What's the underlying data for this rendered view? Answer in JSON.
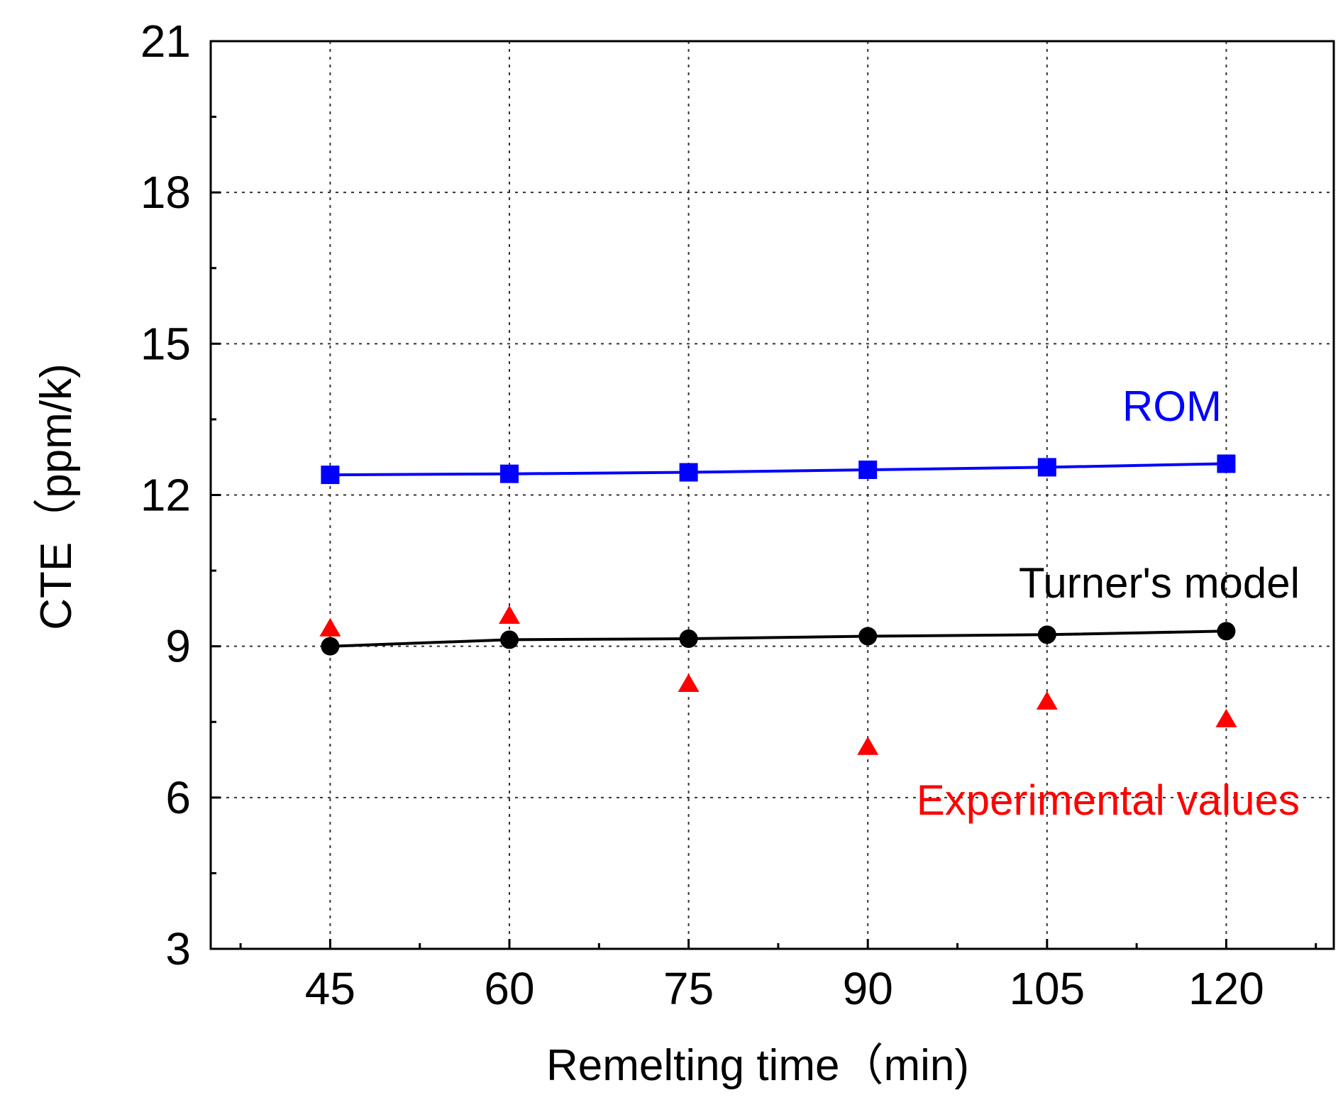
{
  "chart_data": {
    "type": "line",
    "title": "",
    "xlabel": "Remelting time（min)",
    "ylabel": "CTE（ppm/k)",
    "x": [
      45,
      60,
      75,
      90,
      105,
      120
    ],
    "xticks": [
      "45",
      "60",
      "75",
      "90",
      "105",
      "120"
    ],
    "xlim": [
      35,
      129
    ],
    "ylim": [
      3,
      21
    ],
    "yticks": [
      "3",
      "6",
      "9",
      "12",
      "15",
      "18",
      "21"
    ],
    "grid": true,
    "series": [
      {
        "name": "ROM",
        "values": [
          12.4,
          12.42,
          12.45,
          12.5,
          12.55,
          12.62
        ],
        "color": "#0000ff",
        "marker": "square",
        "line": true
      },
      {
        "name": "Turner's model",
        "values": [
          9.0,
          9.13,
          9.15,
          9.2,
          9.23,
          9.3
        ],
        "color": "#000000",
        "marker": "circle",
        "line": true
      },
      {
        "name": "Experimental values",
        "values": [
          9.35,
          9.6,
          8.25,
          7.0,
          7.9,
          7.55
        ],
        "color": "#ff0000",
        "marker": "triangle",
        "line": false
      }
    ],
    "annotations": [
      {
        "text": "ROM",
        "color": "#0000ff"
      },
      {
        "text": "Turner's model",
        "color": "#000000"
      },
      {
        "text": "Experimental values",
        "color": "#ff0000"
      }
    ]
  }
}
